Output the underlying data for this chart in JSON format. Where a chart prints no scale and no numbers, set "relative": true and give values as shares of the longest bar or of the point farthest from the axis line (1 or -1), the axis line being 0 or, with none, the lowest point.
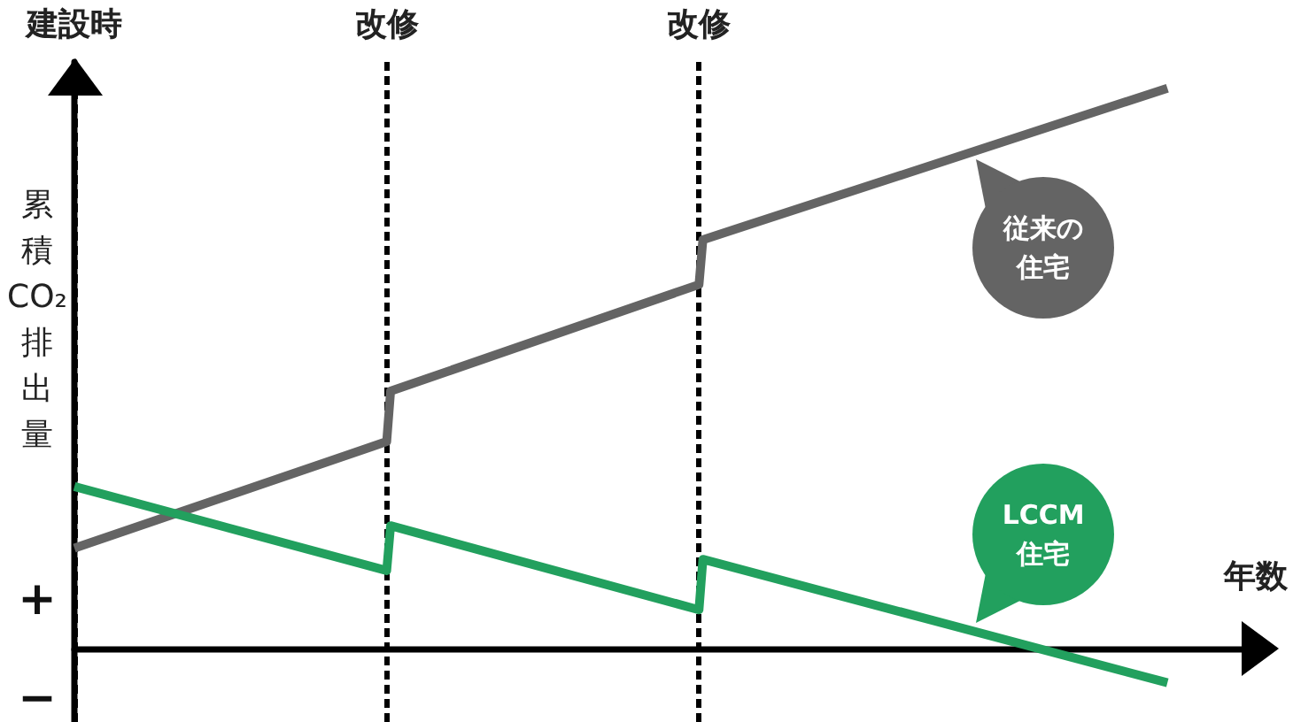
{
  "chart_data": {
    "type": "line",
    "relative": true,
    "xlabel": "年数",
    "ylabel": "累積CO₂排出量",
    "categories": [
      "建設時",
      null,
      null,
      null,
      null,
      null,
      null,
      null,
      null,
      null,
      null,
      null,
      null,
      null,
      null,
      null,
      null,
      null,
      null,
      null,
      null,
      null,
      null,
      null,
      null,
      null,
      null,
      null,
      null,
      null,
      null,
      null,
      null,
      null,
      null,
      null,
      null,
      null,
      null,
      null,
      null,
      null,
      null,
      null,
      null,
      null,
      null,
      null,
      null,
      null,
      null,
      null,
      null,
      null,
      null,
      null,
      null,
      null,
      null,
      null,
      null,
      null,
      null,
      null,
      null,
      null,
      null,
      null,
      null,
      null,
      null,
      null,
      null,
      null,
      null,
      null,
      null,
      null,
      null,
      null,
      "改修",
      null,
      null,
      null,
      null,
      null,
      null,
      null,
      null,
      null,
      null,
      null,
      null,
      null,
      null,
      null,
      null,
      null,
      null,
      null,
      null,
      null,
      null,
      null,
      null,
      null,
      null,
      null,
      null,
      null,
      null,
      null,
      null,
      null,
      null,
      null,
      null,
      null,
      null,
      null,
      null,
      null,
      null,
      null,
      null,
      null,
      null,
      null,
      null,
      null,
      null,
      null,
      null,
      null,
      null,
      null,
      null,
      null,
      null,
      null,
      null,
      null,
      null,
      null,
      null,
      null,
      null,
      null,
      null,
      null,
      null,
      null,
      null,
      null,
      null,
      null,
      null,
      null,
      null,
      null,
      "改修",
      null,
      null,
      null,
      null,
      null,
      null,
      null,
      null,
      null,
      null,
      null,
      null,
      null,
      null,
      null,
      null,
      null,
      null,
      null,
      null,
      null,
      null,
      null,
      null,
      null,
      null,
      null,
      null,
      null,
      null,
      null,
      null,
      null,
      null,
      null,
      null,
      null,
      null,
      null,
      null,
      null,
      null,
      null,
      null,
      null,
      null,
      null,
      null,
      null,
      null,
      null,
      null,
      null,
      null,
      null,
      null,
      null,
      null,
      null,
      null,
      null,
      null,
      null,
      null,
      null,
      null,
      null,
      null,
      null,
      null,
      null,
      null,
      null,
      null,
      null,
      null,
      null,
      null,
      null,
      null,
      null,
      null,
      null,
      null,
      null,
      null,
      null,
      null,
      null,
      null,
      null,
      null,
      null,
      null,
      null,
      null,
      null,
      null,
      null,
      null,
      null,
      null,
      null,
      null,
      null,
      null,
      null,
      null,
      null,
      null,
      null,
      null,
      null,
      null,
      null,
      null,
      null,
      null,
      null,
      null,
      null,
      null,
      null,
      null,
      null,
      null,
      null,
      null,
      null,
      null,
      null,
      null,
      null,
      null,
      null,
      null,
      null,
      null,
      null,
      null,
      null,
      null,
      null,
      null
    ],
    "tick_labels": "x",
    "grid": "x",
    "marker": "none",
    "series": [
      {
        "name": "従来の住宅",
        "color": "#646464",
        "values": [
          0.18,
          null,
          null,
          null,
          null,
          null,
          null,
          null,
          null,
          null,
          null,
          null,
          null,
          null,
          null,
          null,
          null,
          null,
          null,
          null,
          null,
          null,
          null,
          null,
          null,
          null,
          null,
          null,
          null,
          null,
          null,
          null,
          null,
          null,
          null,
          null,
          null,
          null,
          null,
          null,
          null,
          null,
          null,
          null,
          null,
          null,
          null,
          null,
          null,
          null,
          null,
          null,
          null,
          null,
          null,
          null,
          null,
          null,
          null,
          null,
          null,
          null,
          null,
          null,
          null,
          null,
          null,
          null,
          null,
          null,
          null,
          null,
          null,
          null,
          null,
          null,
          null,
          null,
          null,
          null,
          0.37,
          0.46,
          null,
          null,
          null,
          null,
          null,
          null,
          null,
          null,
          null,
          null,
          null,
          null,
          null,
          null,
          null,
          null,
          null,
          null,
          null,
          null,
          null,
          null,
          null,
          null,
          null,
          null,
          null,
          null,
          null,
          null,
          null,
          null,
          null,
          null,
          null,
          null,
          null,
          null,
          null,
          null,
          null,
          null,
          null,
          null,
          null,
          null,
          null,
          null,
          null,
          null,
          null,
          null,
          null,
          null,
          null,
          null,
          null,
          null,
          null,
          null,
          null,
          null,
          null,
          null,
          null,
          null,
          null,
          null,
          null,
          null,
          null,
          null,
          null,
          null,
          null,
          null,
          null,
          null,
          0.65,
          0.73,
          null,
          null,
          null,
          null,
          null,
          null,
          null,
          null,
          null,
          null,
          null,
          null,
          null,
          null,
          null,
          null,
          null,
          null,
          null,
          null,
          null,
          null,
          null,
          null,
          null,
          null,
          null,
          null,
          null,
          null,
          null,
          null,
          null,
          null,
          null,
          null,
          null,
          null,
          null,
          null,
          null,
          null,
          null,
          null,
          null,
          null,
          null,
          null,
          null,
          null,
          null,
          null,
          null,
          null,
          null,
          null,
          null,
          null,
          null,
          null,
          null,
          null,
          null,
          null,
          null,
          null,
          null,
          null,
          null,
          null,
          null,
          null,
          null,
          null,
          null,
          null,
          null,
          null,
          null,
          null,
          null,
          null,
          null,
          null,
          null,
          null,
          null,
          null,
          null,
          null,
          null,
          null,
          null,
          null,
          null,
          null,
          null,
          null,
          null,
          null,
          null,
          null,
          null,
          null,
          null,
          null,
          null,
          null,
          null,
          null,
          null,
          null,
          null,
          null,
          null,
          null,
          null,
          null,
          1,
          null,
          null,
          null,
          null,
          null,
          null,
          null,
          null,
          null,
          null,
          null,
          null,
          null,
          null,
          null,
          null,
          null,
          null,
          null,
          null,
          null,
          null,
          null,
          null
        ]
      },
      {
        "name": "LCCM住宅",
        "color": "#22a05e",
        "values": [
          0.29,
          null,
          null,
          null,
          null,
          null,
          null,
          null,
          null,
          null,
          null,
          null,
          null,
          null,
          null,
          null,
          null,
          null,
          null,
          null,
          null,
          null,
          null,
          null,
          null,
          null,
          null,
          null,
          null,
          null,
          null,
          null,
          null,
          null,
          null,
          null,
          null,
          null,
          null,
          null,
          null,
          null,
          null,
          null,
          null,
          null,
          null,
          null,
          null,
          null,
          null,
          null,
          null,
          null,
          null,
          null,
          null,
          null,
          null,
          null,
          null,
          null,
          null,
          null,
          null,
          null,
          null,
          null,
          null,
          null,
          null,
          null,
          null,
          null,
          null,
          null,
          null,
          null,
          null,
          null,
          0.14,
          0.22,
          null,
          null,
          null,
          null,
          null,
          null,
          null,
          null,
          null,
          null,
          null,
          null,
          null,
          null,
          null,
          null,
          null,
          null,
          null,
          null,
          null,
          null,
          null,
          null,
          null,
          null,
          null,
          null,
          null,
          null,
          null,
          null,
          null,
          null,
          null,
          null,
          null,
          null,
          null,
          null,
          null,
          null,
          null,
          null,
          null,
          null,
          null,
          null,
          null,
          null,
          null,
          null,
          null,
          null,
          null,
          null,
          null,
          null,
          null,
          null,
          null,
          null,
          null,
          null,
          null,
          null,
          null,
          null,
          null,
          null,
          null,
          null,
          null,
          null,
          null,
          null,
          null,
          null,
          0.07,
          0.16,
          null,
          null,
          null,
          null,
          null,
          null,
          null,
          null,
          null,
          null,
          null,
          null,
          null,
          null,
          null,
          null,
          null,
          null,
          null,
          null,
          null,
          null,
          null,
          null,
          null,
          null,
          null,
          null,
          null,
          null,
          null,
          null,
          null,
          null,
          null,
          null,
          null,
          null,
          null,
          null,
          null,
          null,
          null,
          null,
          null,
          null,
          null,
          null,
          null,
          null,
          null,
          null,
          null,
          null,
          null,
          null,
          null,
          null,
          null,
          null,
          null,
          null,
          null,
          null,
          null,
          null,
          null,
          null,
          null,
          null,
          null,
          null,
          null,
          null,
          null,
          null,
          null,
          null,
          null,
          null,
          null,
          null,
          null,
          null,
          null,
          null,
          null,
          null,
          null,
          null,
          null,
          null,
          null,
          null,
          null,
          null,
          null,
          null,
          null,
          null,
          null,
          null,
          null,
          null,
          null,
          null,
          null,
          null,
          null,
          null,
          null,
          null,
          null,
          null,
          null,
          null,
          null,
          null,
          -0.06,
          null,
          null,
          null,
          null,
          null,
          null,
          null,
          null,
          null,
          null,
          null,
          null,
          null,
          null,
          null,
          null,
          null,
          null,
          null,
          null,
          null,
          null,
          null,
          null
        ]
      }
    ],
    "annotations": [
      "+",
      "−"
    ]
  }
}
